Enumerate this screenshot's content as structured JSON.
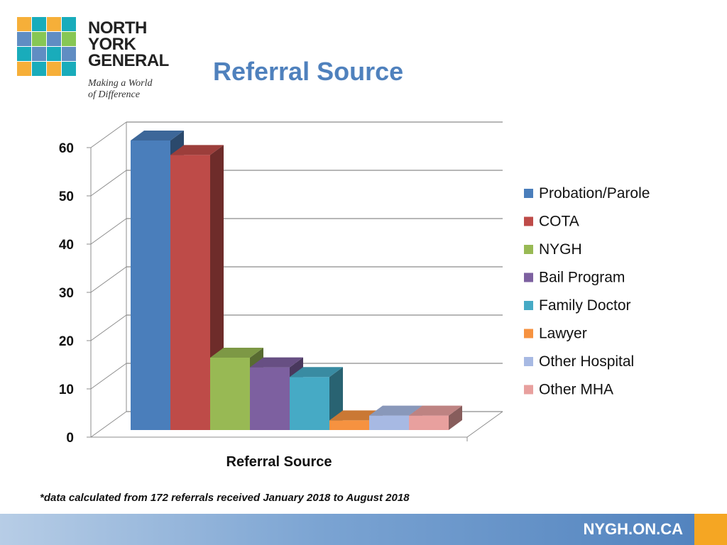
{
  "logo": {
    "name_lines": [
      "NORTH",
      "YORK",
      "GENERAL"
    ],
    "tagline_lines": [
      "Making a World",
      "of Difference"
    ],
    "colors": [
      "#f5a623",
      "#00a3b4",
      "#4f81bd",
      "#7ac143"
    ]
  },
  "slide": {
    "title": "Referral Source"
  },
  "chart_data": {
    "type": "bar",
    "title": "",
    "xlabel": "Referral Source",
    "ylabel": "",
    "ylim": [
      0,
      60
    ],
    "yticks": [
      0,
      10,
      20,
      30,
      40,
      50,
      60
    ],
    "grid": true,
    "legend_position": "right",
    "series": [
      {
        "name": "Probation/Parole",
        "value": 60,
        "color": "#4a7ebb"
      },
      {
        "name": "COTA",
        "value": 57,
        "color": "#be4b48"
      },
      {
        "name": "NYGH",
        "value": 15,
        "color": "#98b954"
      },
      {
        "name": "Bail Program",
        "value": 13,
        "color": "#7d60a0"
      },
      {
        "name": "Family Doctor",
        "value": 11,
        "color": "#46aac5"
      },
      {
        "name": "Lawyer",
        "value": 2,
        "color": "#f69240"
      },
      {
        "name": "Other Hospital",
        "value": 3,
        "color": "#a7b9e3"
      },
      {
        "name": "Other MHA",
        "value": 3,
        "color": "#e8a09e"
      }
    ]
  },
  "footnote": "*data calculated from 172 referrals received January 2018 to August 2018",
  "footer": {
    "url": "NYGH.ON.CA"
  }
}
